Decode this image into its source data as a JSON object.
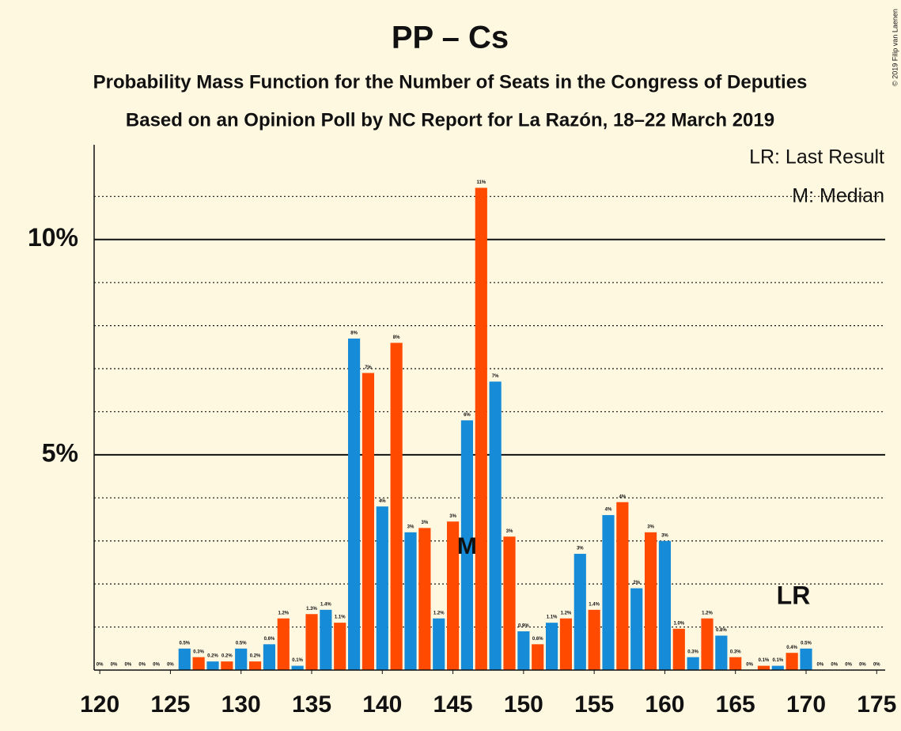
{
  "chart_data": {
    "type": "bar",
    "title": "PP – Cs",
    "subtitle": "Probability Mass Function for the Number of Seats in the Congress of Deputies",
    "subtitle2": "Based on an Opinion Poll by NC Report for La Razón, 18–22 March 2019",
    "copyright": "© 2019 Filip van Laenen",
    "legend": [
      "LR: Last Result",
      "M: Median"
    ],
    "last_result": 170,
    "last_result_label": "LR",
    "median": 146,
    "median_label": "M",
    "colors": [
      "#168cd9",
      "#ff4a00"
    ],
    "x": [
      120,
      121,
      122,
      123,
      124,
      125,
      126,
      127,
      128,
      129,
      130,
      131,
      132,
      133,
      134,
      135,
      136,
      137,
      138,
      139,
      140,
      141,
      142,
      143,
      144,
      145,
      146,
      147,
      148,
      149,
      150,
      151,
      152,
      153,
      154,
      155,
      156,
      157,
      158,
      159,
      160,
      161,
      162,
      163,
      164,
      165,
      166,
      167,
      168,
      169,
      170,
      171,
      172,
      173,
      174,
      175
    ],
    "values": [
      0,
      0,
      0,
      0,
      0,
      0,
      0.5,
      0.3,
      0.2,
      0.2,
      0.5,
      0.2,
      0.6,
      1.2,
      0.1,
      1.3,
      1.4,
      1.1,
      7.7,
      6.9,
      3.8,
      7.6,
      3.2,
      3.3,
      1.2,
      3.45,
      5.8,
      11.2,
      6.7,
      3.1,
      0.9,
      0.6,
      1.1,
      1.2,
      2.7,
      1.4,
      3.6,
      3.9,
      1.9,
      3.2,
      3.0,
      0.96,
      0.3,
      1.2,
      0.8,
      0.3,
      0,
      0.1,
      0.1,
      0.4,
      0.5,
      0,
      0,
      0,
      0,
      0
    ],
    "value_labels": [
      "0%",
      "0%",
      "0%",
      "0%",
      "0%",
      "0%",
      "0.5%",
      "0.3%",
      "0.2%",
      "0.2%",
      "0.5%",
      "0.2%",
      "0.6%",
      "1.2%",
      "0.1%",
      "1.3%",
      "1.4%",
      "1.1%",
      "8%",
      "7%",
      "4%",
      "8%",
      "3%",
      "3%",
      "1.2%",
      "3%",
      "6%",
      "11%",
      "7%",
      "3%",
      "0.9%",
      "0.6%",
      "1.1%",
      "1.2%",
      "3%",
      "1.4%",
      "4%",
      "4%",
      "2%",
      "3%",
      "3%",
      "1.0%",
      "0.3%",
      "1.2%",
      "0.8%",
      "0.3%",
      "0%",
      "0.1%",
      "0.1%",
      "0.4%",
      "0.5%",
      "0%",
      "0%",
      "0%",
      "0%",
      "0%"
    ],
    "xlim": [
      119.6,
      175.6
    ],
    "xticks": [
      120,
      125,
      130,
      135,
      140,
      145,
      150,
      155,
      160,
      165,
      170,
      175
    ],
    "ylim": [
      0,
      12.2
    ],
    "yticks": [
      {
        "value": 5,
        "label": "5%"
      },
      {
        "value": 10,
        "label": "10%"
      }
    ],
    "minor_yticks": [
      1,
      2,
      3,
      4,
      6,
      7,
      8,
      9,
      11
    ]
  }
}
